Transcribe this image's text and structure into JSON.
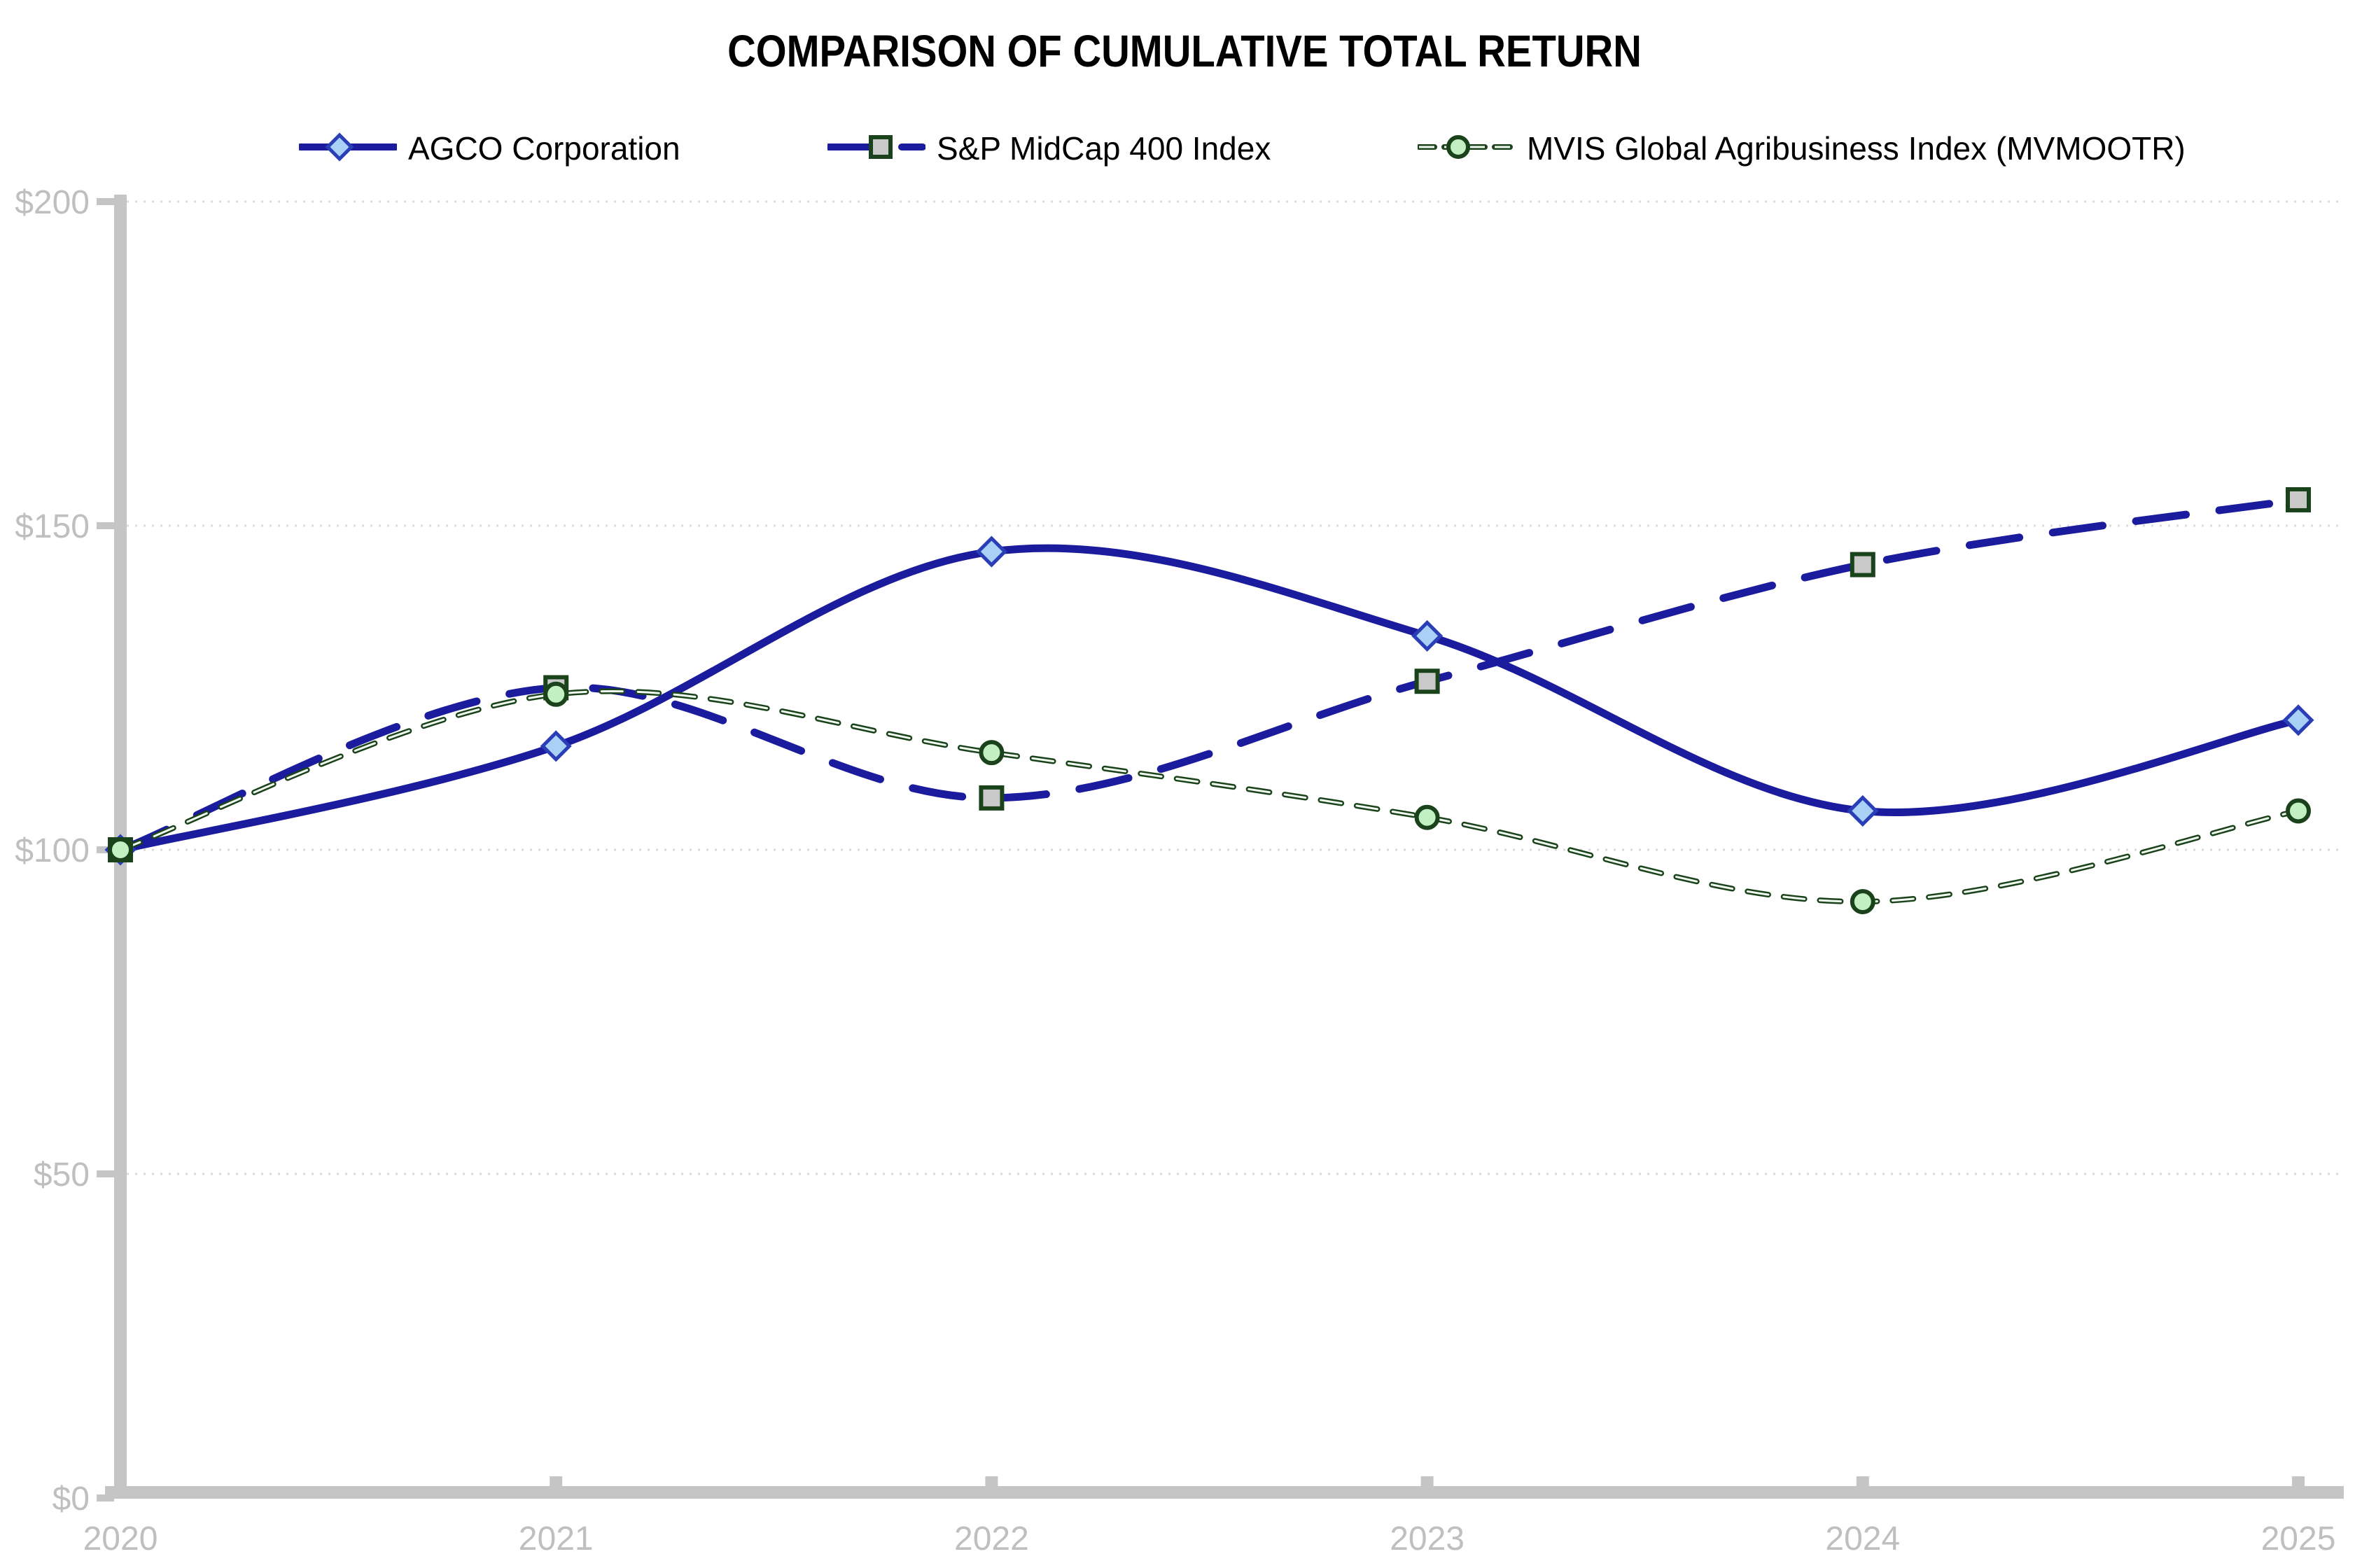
{
  "title": "COMPARISON OF CUMULATIVE TOTAL RETURN",
  "chart_data": {
    "type": "line",
    "categories": [
      "2020",
      "2021",
      "2022",
      "2023",
      "2024",
      "2025"
    ],
    "series": [
      {
        "name": "AGCO Corporation",
        "values": [
          100,
          116,
          146,
          133,
          106,
          120
        ],
        "line_style": "solid",
        "marker": "diamond",
        "line_color": "#1B1B9E",
        "marker_fill": "#A9D1F5",
        "marker_border": "#2A3EB8"
      },
      {
        "name": "S&P MidCap 400 Index",
        "values": [
          100,
          125,
          108,
          126,
          144,
          154
        ],
        "line_style": "long-dash",
        "marker": "square",
        "line_color": "#1B1B9E",
        "marker_fill": "#C9C9C9",
        "marker_border": "#1B431B"
      },
      {
        "name": "MVIS Global Agribusiness Index (MVMOOTR)",
        "values": [
          100,
          124,
          115,
          105,
          92,
          106
        ],
        "line_style": "short-dash",
        "marker": "circle",
        "line_color": "#1B431B",
        "marker_fill": "#C2F0C2",
        "marker_border": "#1B431B"
      }
    ],
    "title": "COMPARISON OF CUMULATIVE TOTAL RETURN",
    "xlabel": "",
    "ylabel": "",
    "ylim": [
      0,
      200
    ],
    "ystep": 50,
    "ytick_labels": [
      "$0",
      "$50",
      "$100",
      "$150",
      "$200"
    ],
    "grid": "horizontal-dotted",
    "legend_position": "top",
    "smoothed_lines": true,
    "axis_color": "#C5C5C5",
    "gridline_color": "#DBDBDB",
    "tick_label_color": "#BFBFBF",
    "line_core_color": "#F1FAF1"
  }
}
